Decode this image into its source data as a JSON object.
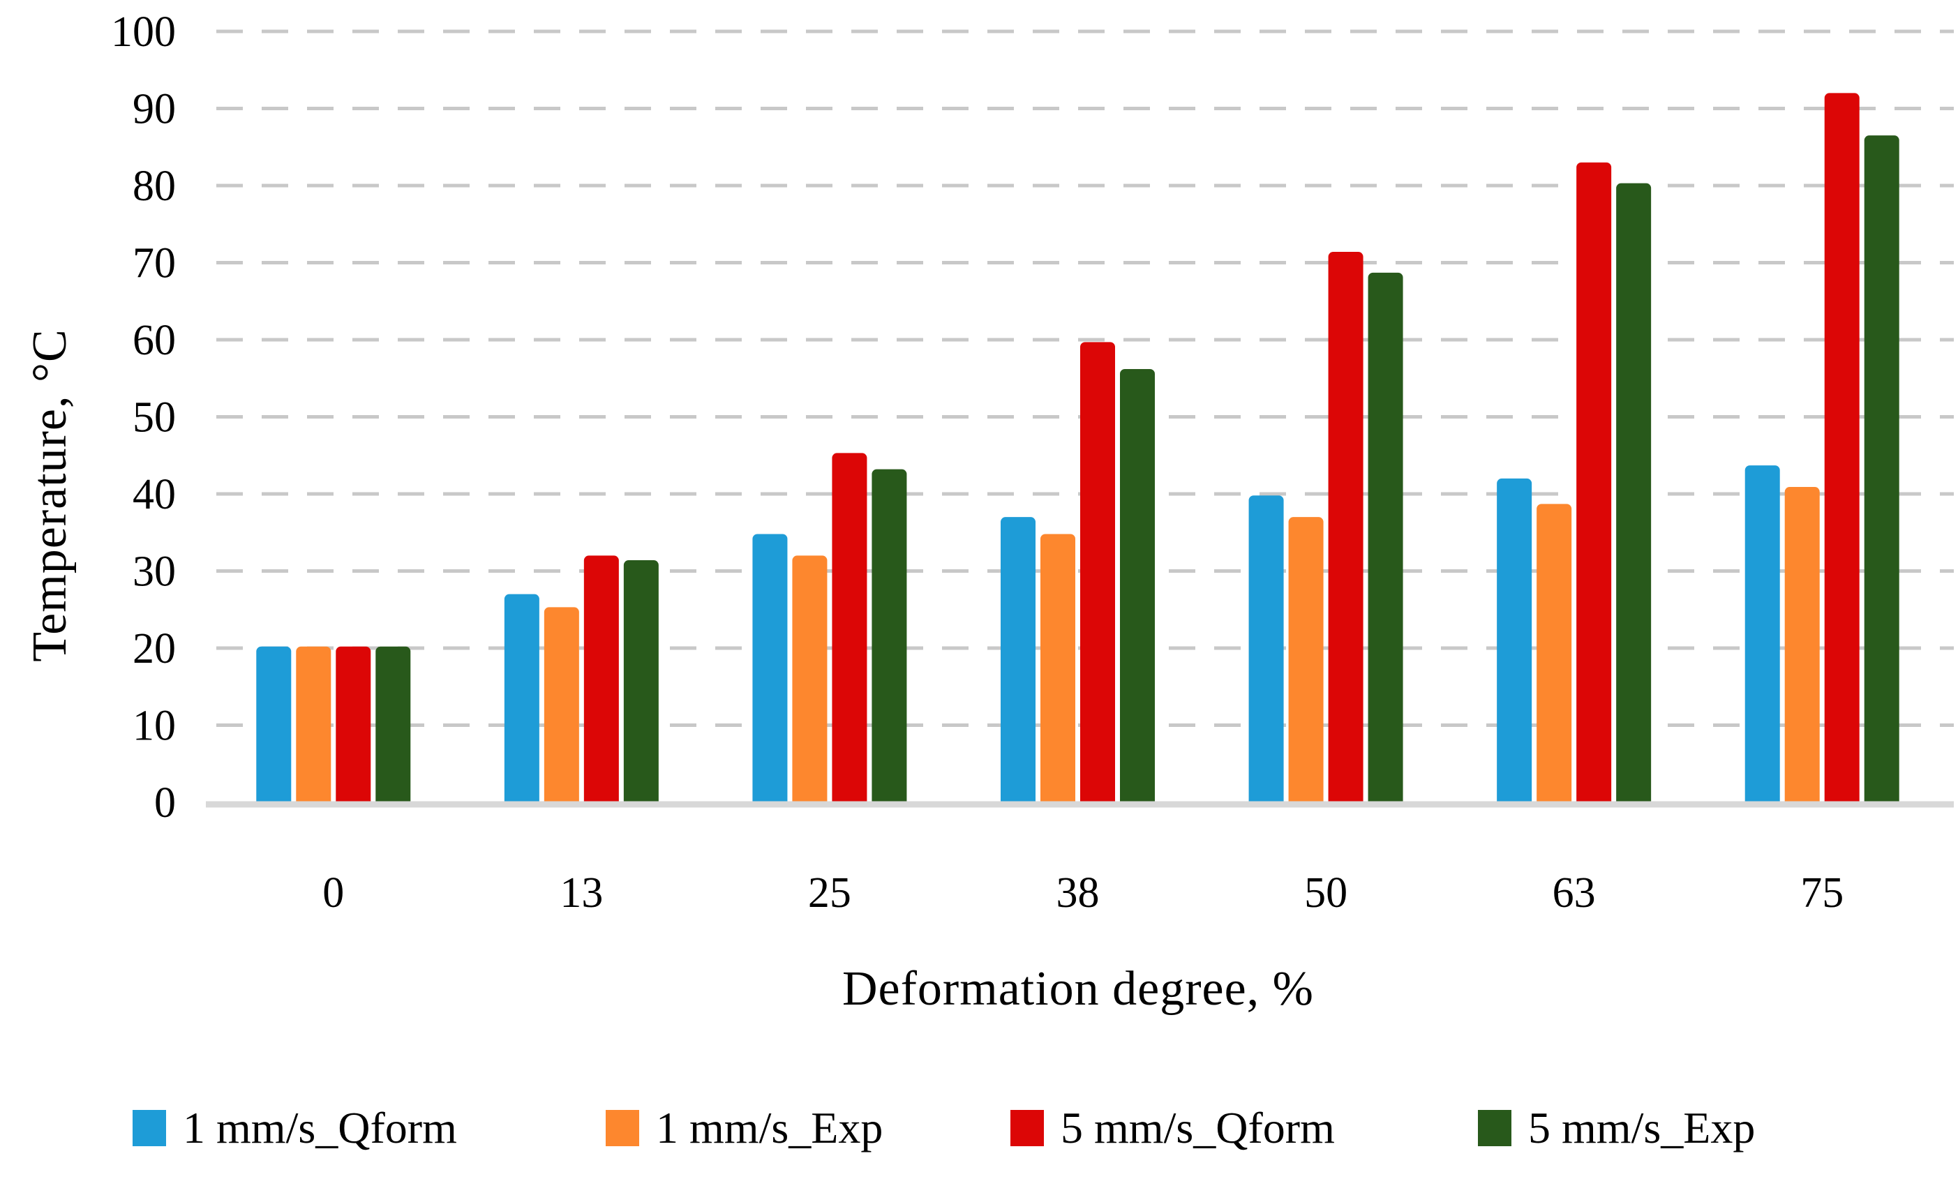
{
  "chart_data": {
    "type": "bar",
    "title": "",
    "xlabel": "Deformation degree, %",
    "ylabel": "Temperature, °C",
    "categories": [
      "0",
      "13",
      "25",
      "38",
      "50",
      "63",
      "75"
    ],
    "series": [
      {
        "name": "1 mm/s_Qform",
        "color": "#1E9CD7",
        "values": [
          20.2,
          27.0,
          34.8,
          37.0,
          39.8,
          42.0,
          43.7
        ]
      },
      {
        "name": "1 mm/s_Exp",
        "color": "#FD872E",
        "values": [
          20.2,
          25.3,
          32.0,
          34.8,
          37.0,
          38.7,
          40.9
        ]
      },
      {
        "name": "5 mm/s_Qform",
        "color": "#DC0606",
        "values": [
          20.2,
          32.0,
          45.3,
          59.7,
          71.4,
          83.0,
          92.0
        ]
      },
      {
        "name": "5 mm/s_Exp",
        "color": "#28591B",
        "values": [
          20.2,
          31.4,
          43.2,
          56.2,
          68.7,
          80.3,
          86.5
        ]
      }
    ],
    "ylim": [
      0,
      100
    ],
    "ytick_step": 10,
    "ytick_labels": [
      "0",
      "10",
      "20",
      "30",
      "40",
      "50",
      "60",
      "70",
      "80",
      "90",
      "100"
    ],
    "grid": "horizontal dashed",
    "legend_position": "bottom",
    "colors": {
      "gridline": "#C8C8C8",
      "axis_line": "#D8D8D8",
      "text": "#000000",
      "background": "#FFFFFF"
    }
  }
}
